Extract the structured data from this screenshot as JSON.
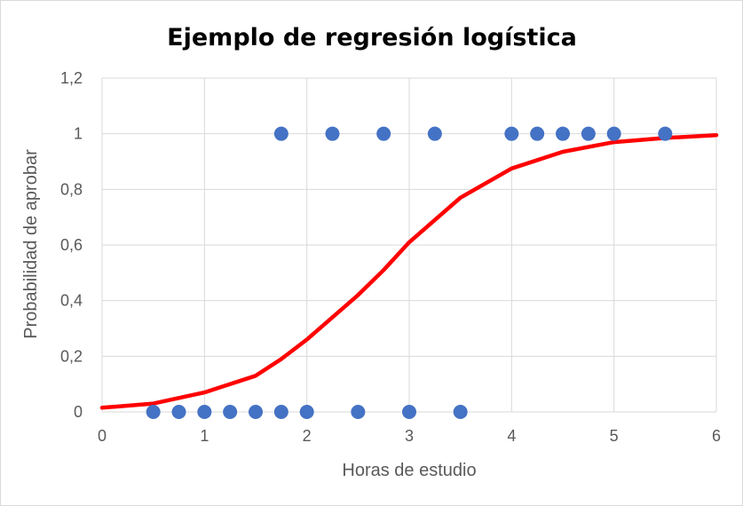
{
  "chart_data": {
    "type": "scatter",
    "title": "Ejemplo de regresión logística",
    "xlabel": "Horas de estudio",
    "ylabel": "Probabilidad de aprobar",
    "xlim": [
      0,
      6
    ],
    "ylim": [
      0,
      1.2
    ],
    "x_ticks": [
      "0",
      "1",
      "2",
      "3",
      "4",
      "5",
      "6"
    ],
    "y_ticks": [
      "0",
      "0,2",
      "0,4",
      "0,6",
      "0,8",
      "1",
      "1,2"
    ],
    "grid": true,
    "legend": "none",
    "colors": {
      "points": "#4472c4",
      "curve": "#ff0000",
      "grid": "#d9d9d9"
    },
    "series": [
      {
        "type": "scatter",
        "points": [
          [
            0.5,
            0
          ],
          [
            0.75,
            0
          ],
          [
            1.0,
            0
          ],
          [
            1.25,
            0
          ],
          [
            1.5,
            0
          ],
          [
            1.75,
            0
          ],
          [
            1.75,
            1
          ],
          [
            2.0,
            0
          ],
          [
            2.25,
            1
          ],
          [
            2.5,
            0
          ],
          [
            2.75,
            1
          ],
          [
            3.0,
            0
          ],
          [
            3.25,
            1
          ],
          [
            3.5,
            0
          ],
          [
            4.0,
            1
          ],
          [
            4.25,
            1
          ],
          [
            4.5,
            1
          ],
          [
            4.75,
            1
          ],
          [
            5.0,
            1
          ],
          [
            5.5,
            1
          ]
        ]
      },
      {
        "type": "line",
        "points": [
          [
            0,
            0.015
          ],
          [
            0.5,
            0.03
          ],
          [
            1.0,
            0.07
          ],
          [
            1.5,
            0.13
          ],
          [
            1.75,
            0.19
          ],
          [
            2.0,
            0.26
          ],
          [
            2.5,
            0.42
          ],
          [
            2.75,
            0.51
          ],
          [
            3.0,
            0.61
          ],
          [
            3.5,
            0.77
          ],
          [
            4.0,
            0.875
          ],
          [
            4.5,
            0.935
          ],
          [
            5.0,
            0.97
          ],
          [
            5.5,
            0.985
          ],
          [
            6.0,
            0.995
          ]
        ]
      }
    ]
  }
}
